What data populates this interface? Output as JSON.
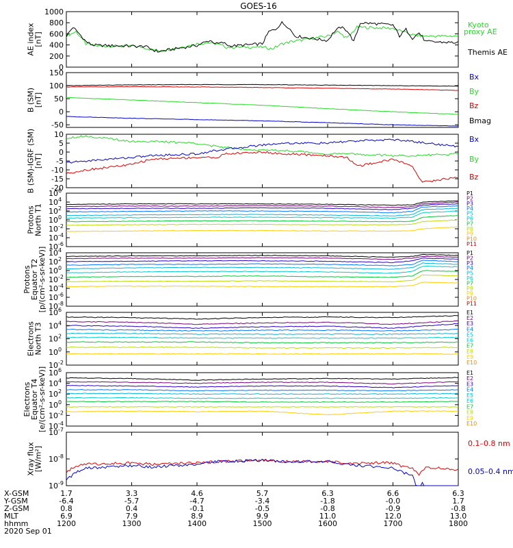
{
  "title": "GOES-16",
  "colors": {
    "black": "#000000",
    "green": "#22dd22",
    "blue": "#0000cc",
    "red": "#dd0000",
    "spectrum": [
      "#000000",
      "#7a007a",
      "#2a00cc",
      "#0077ff",
      "#00b8e0",
      "#00cccc",
      "#00cc33",
      "#bbdd00",
      "#ffcc00",
      "#ee8800",
      "#cc0000"
    ]
  },
  "time_axis": {
    "range": [
      1200,
      1800
    ],
    "ticks": [
      1200,
      1300,
      1400,
      1500,
      1600,
      1700,
      1800
    ],
    "rows": [
      {
        "label": "X-GSM",
        "values": [
          "1.7",
          "3.3",
          "4.6",
          "5.7",
          "6.3",
          "6.6",
          "6.3"
        ]
      },
      {
        "label": "Y-GSM",
        "values": [
          "-6.4",
          "-5.7",
          "-4.7",
          "-3.4",
          "-1.8",
          "-0.0",
          "1.7"
        ]
      },
      {
        "label": "Z-GSM",
        "values": [
          "0.8",
          "0.4",
          "-0.1",
          "-0.5",
          "-0.8",
          "-0.9",
          "-0.8"
        ]
      },
      {
        "label": "MLT",
        "values": [
          "6.9",
          "7.9",
          "8.9",
          "9.9",
          "11.0",
          "12.0",
          "13.0"
        ]
      },
      {
        "label": "hhmm",
        "values": [
          "1200",
          "1300",
          "1400",
          "1500",
          "1600",
          "1700",
          "1800"
        ]
      }
    ],
    "date": "2020 Sep 01"
  },
  "chart_data": [
    {
      "type": "line",
      "scale": "linear",
      "ylabel": [
        "AE index",
        "[nT]"
      ],
      "ylim": [
        0,
        1000
      ],
      "yticks": [
        0,
        200,
        400,
        600,
        800,
        1000
      ],
      "legend": [
        {
          "text": "Kyoto",
          "color": "#22dd22"
        },
        {
          "text": "proxy AE",
          "color": "#22dd22"
        },
        {
          "text": "Themis AE",
          "color": "#000000"
        }
      ],
      "series": [
        {
          "name": "Kyoto proxy AE",
          "color": "#22dd22",
          "x": [
            1200,
            1215,
            1230,
            1245,
            1300,
            1315,
            1330,
            1345,
            1400,
            1415,
            1430,
            1445,
            1500,
            1515,
            1530,
            1545,
            1600,
            1615,
            1630,
            1645,
            1700,
            1715,
            1730,
            1745,
            1800
          ],
          "y": [
            560,
            640,
            420,
            380,
            380,
            360,
            320,
            290,
            420,
            440,
            420,
            360,
            360,
            330,
            420,
            460,
            560,
            640,
            520,
            720,
            700,
            640,
            580,
            560,
            560
          ]
        },
        {
          "name": "Themis AE",
          "color": "#000000",
          "x": [
            1200,
            1210,
            1220,
            1230,
            1240,
            1250,
            1300,
            1310,
            1320,
            1330,
            1340,
            1350,
            1400,
            1410,
            1420,
            1430,
            1440,
            1450,
            1500,
            1510,
            1520,
            1530,
            1540,
            1550,
            1600,
            1610,
            1620,
            1630,
            1640,
            1650,
            1700,
            1710,
            1720,
            1730,
            1740,
            1750,
            1800
          ],
          "y": [
            560,
            720,
            600,
            460,
            400,
            390,
            380,
            370,
            380,
            320,
            280,
            300,
            390,
            440,
            480,
            420,
            440,
            380,
            420,
            640,
            680,
            800,
            720,
            560,
            480,
            640,
            720,
            660,
            460,
            800,
            760,
            560,
            680,
            520,
            620,
            460,
            440
          ]
        }
      ]
    },
    {
      "type": "line",
      "scale": "linear",
      "ylabel": [
        "B (SM)",
        "[nT]"
      ],
      "ylim": [
        -60,
        150
      ],
      "yticks": [
        -50,
        0,
        50,
        100,
        150
      ],
      "legend": [
        {
          "text": "Bx",
          "color": "#0000cc"
        },
        {
          "text": "By",
          "color": "#22dd22"
        },
        {
          "text": "Bz",
          "color": "#dd0000"
        },
        {
          "text": "Bmag",
          "color": "#000000"
        }
      ],
      "series": [
        {
          "name": "Bmag",
          "color": "#000000",
          "x": [
            1200,
            1300,
            1400,
            1500,
            1600,
            1700,
            1800
          ],
          "y": [
            100,
            103,
            104,
            104,
            102,
            100,
            98
          ]
        },
        {
          "name": "Bz",
          "color": "#dd0000",
          "x": [
            1200,
            1300,
            1400,
            1500,
            1600,
            1700,
            1800
          ],
          "y": [
            95,
            96,
            95,
            93,
            90,
            87,
            82
          ]
        },
        {
          "name": "By",
          "color": "#22dd22",
          "x": [
            1200,
            1300,
            1400,
            1500,
            1600,
            1700,
            1800
          ],
          "y": [
            55,
            45,
            35,
            25,
            12,
            0,
            -10
          ]
        },
        {
          "name": "Bx",
          "color": "#0000cc",
          "x": [
            1200,
            1300,
            1400,
            1500,
            1600,
            1700,
            1800
          ],
          "y": [
            -18,
            -25,
            -30,
            -35,
            -42,
            -50,
            -55
          ]
        }
      ]
    },
    {
      "type": "line",
      "scale": "linear",
      "ylabel": [
        "B (SM)-IGRF (SM)",
        "[nT]"
      ],
      "ylim": [
        -20,
        10
      ],
      "yticks": [
        -20,
        -15,
        -10,
        -5,
        0,
        5,
        10
      ],
      "legend": [
        {
          "text": "Bx",
          "color": "#0000cc"
        },
        {
          "text": "By",
          "color": "#22dd22"
        },
        {
          "text": "Bz",
          "color": "#dd0000"
        }
      ],
      "series": [
        {
          "name": "By",
          "color": "#22dd22",
          "x": [
            1200,
            1230,
            1300,
            1330,
            1400,
            1430,
            1500,
            1530,
            1600,
            1630,
            1700,
            1730,
            1800
          ],
          "y": [
            8,
            9,
            6,
            6,
            5,
            3,
            1,
            1,
            -1,
            -1,
            -2,
            -2,
            -1
          ]
        },
        {
          "name": "Bx",
          "color": "#0000cc",
          "x": [
            1200,
            1230,
            1300,
            1330,
            1400,
            1430,
            1500,
            1530,
            1600,
            1630,
            1700,
            1730,
            1800
          ],
          "y": [
            -6,
            -5,
            -3,
            -2,
            -1,
            1,
            4,
            5,
            5,
            6,
            7,
            6,
            3
          ]
        },
        {
          "name": "Bz",
          "color": "#dd0000",
          "x": [
            1200,
            1230,
            1300,
            1330,
            1400,
            1430,
            1445,
            1500,
            1530,
            1600,
            1630,
            1645,
            1700,
            1730,
            1745,
            1800
          ],
          "y": [
            -12,
            -10,
            -7,
            -4,
            -3,
            -3,
            -1,
            0,
            -1,
            -2,
            -3,
            -8,
            -4,
            -8,
            -17,
            -14
          ]
        }
      ]
    },
    {
      "type": "line",
      "scale": "log",
      "ylabel": [
        "Protons",
        "North T1"
      ],
      "ylim_exp": [
        -6,
        6
      ],
      "tick_exps": [
        -6,
        -4,
        -2,
        0,
        2,
        4,
        6
      ],
      "legend_labels": [
        "P1",
        "P2",
        "P3",
        "P4",
        "P5",
        "P6",
        "P7",
        "P8",
        "P9",
        "P10",
        "P11"
      ],
      "x": [
        1200,
        1300,
        1400,
        1500,
        1600,
        1700,
        1730,
        1745,
        1800
      ],
      "log10_values": [
        [
          3.5,
          3.6,
          3.6,
          3.6,
          3.5,
          3.3,
          3.4,
          4.0,
          4.3
        ],
        [
          3.0,
          3.1,
          3.1,
          3.2,
          3.1,
          2.8,
          3.0,
          3.6,
          4.0
        ],
        [
          2.5,
          2.6,
          2.6,
          2.7,
          2.6,
          2.3,
          2.6,
          3.3,
          3.6
        ],
        [
          1.8,
          1.9,
          2.0,
          2.0,
          1.9,
          1.6,
          1.9,
          2.9,
          3.1
        ],
        [
          1.0,
          1.1,
          1.2,
          1.2,
          1.1,
          0.9,
          1.2,
          2.3,
          2.6
        ],
        [
          0.4,
          0.5,
          0.6,
          0.6,
          0.5,
          0.4,
          0.6,
          1.6,
          2.0
        ],
        [
          -0.4,
          -0.3,
          -0.2,
          -0.2,
          -0.3,
          -0.4,
          -0.3,
          0.6,
          1.0
        ],
        [
          -1.2,
          -1.1,
          -1.0,
          -1.0,
          -1.1,
          -1.1,
          -1.0,
          -0.4,
          0.0
        ],
        [
          -2.6,
          -2.5,
          -2.4,
          -2.4,
          -2.5,
          -2.5,
          -2.4,
          -2.0,
          -1.6
        ],
        null,
        null
      ]
    },
    {
      "type": "line",
      "scale": "log",
      "ylabel": [
        "Protons",
        "Equator T2",
        "[p/(cm²-s-sr-keV)]"
      ],
      "ylim_exp": [
        -8,
        4
      ],
      "tick_exps": [
        -8,
        -6,
        -4,
        -2,
        0,
        2,
        4
      ],
      "legend_labels": [
        "P1",
        "P2",
        "P3",
        "P4",
        "P5",
        "P6",
        "P7",
        "P8",
        "P9",
        "P10",
        "P11"
      ],
      "x": [
        1200,
        1300,
        1400,
        1500,
        1600,
        1700,
        1730,
        1745,
        1800
      ],
      "log10_values": [
        [
          3.2,
          3.3,
          3.3,
          3.4,
          3.3,
          3.0,
          3.2,
          3.6,
          3.4
        ],
        [
          2.7,
          2.8,
          2.8,
          2.9,
          2.8,
          2.5,
          2.8,
          3.2,
          3.0
        ],
        [
          2.0,
          2.1,
          2.2,
          2.2,
          2.1,
          1.8,
          2.2,
          2.8,
          2.6
        ],
        [
          1.2,
          1.4,
          1.4,
          1.5,
          1.4,
          1.1,
          1.4,
          2.3,
          2.0
        ],
        [
          0.4,
          0.6,
          0.7,
          0.7,
          0.6,
          0.3,
          0.7,
          1.7,
          1.4
        ],
        [
          -0.5,
          -0.3,
          -0.2,
          -0.2,
          -0.3,
          -0.6,
          -0.2,
          1.0,
          0.8
        ],
        [
          -1.5,
          -1.3,
          -1.3,
          -1.2,
          -1.4,
          -1.5,
          -1.2,
          0.0,
          -0.2
        ],
        [
          -2.5,
          -2.4,
          -2.4,
          -2.3,
          -2.4,
          -2.5,
          -2.2,
          -1.0,
          -1.2
        ],
        [
          -3.6,
          -3.5,
          -3.5,
          -3.6,
          -3.6,
          -3.6,
          -3.4,
          -2.6,
          -2.8
        ],
        null,
        null
      ]
    },
    {
      "type": "line",
      "scale": "log",
      "ylabel": [
        "Electrons",
        "North T3"
      ],
      "ylim_exp": [
        -2,
        6
      ],
      "tick_exps": [
        -2,
        0,
        2,
        4,
        6
      ],
      "legend_labels": [
        "E1",
        "E2",
        "E3",
        "E4",
        "E5",
        "E6",
        "E7",
        "E8",
        "E9",
        "E10"
      ],
      "x": [
        1200,
        1300,
        1400,
        1500,
        1600,
        1700,
        1800
      ],
      "log10_values": [
        [
          5.3,
          5.2,
          5.0,
          5.2,
          5.3,
          5.2,
          5.5
        ],
        [
          4.6,
          4.5,
          4.2,
          4.4,
          4.5,
          4.2,
          4.7
        ],
        [
          4.0,
          3.9,
          3.6,
          3.8,
          3.9,
          3.6,
          4.3
        ],
        [
          3.4,
          3.3,
          3.2,
          3.3,
          3.3,
          3.2,
          3.4
        ],
        [
          2.8,
          2.8,
          2.7,
          2.7,
          2.7,
          2.7,
          2.8
        ],
        [
          2.2,
          2.2,
          2.1,
          2.1,
          2.1,
          2.1,
          2.2
        ],
        [
          1.5,
          1.5,
          1.5,
          1.4,
          1.4,
          1.4,
          1.5
        ],
        [
          0.7,
          0.7,
          0.7,
          0.6,
          0.6,
          0.6,
          0.7
        ],
        [
          -0.3,
          -0.3,
          -0.3,
          -0.3,
          -0.3,
          -0.3,
          -0.3
        ],
        null
      ]
    },
    {
      "type": "line",
      "scale": "log",
      "ylabel": [
        "Electrons",
        "Equator T4",
        "[e/(cm²-s-sr-keV)]"
      ],
      "ylim_exp": [
        -4,
        6
      ],
      "tick_exps": [
        -4,
        -2,
        0,
        2,
        4,
        6
      ],
      "legend_labels": [
        "E1",
        "E2",
        "E3",
        "E4",
        "E5",
        "E6",
        "E7",
        "E8",
        "E9",
        "E10"
      ],
      "x": [
        1200,
        1300,
        1400,
        1500,
        1600,
        1700,
        1800
      ],
      "log10_values": [
        [
          5.0,
          4.9,
          4.6,
          4.8,
          4.9,
          4.8,
          5.1
        ],
        [
          4.3,
          4.2,
          4.0,
          4.2,
          4.2,
          3.9,
          4.3
        ],
        [
          3.6,
          3.5,
          3.3,
          3.5,
          3.5,
          3.2,
          3.6
        ],
        [
          2.8,
          2.8,
          2.6,
          2.7,
          2.7,
          2.6,
          2.8
        ],
        [
          2.1,
          2.1,
          2.0,
          2.0,
          2.0,
          2.0,
          2.1
        ],
        [
          1.3,
          1.3,
          1.2,
          1.2,
          1.2,
          1.2,
          1.3
        ],
        [
          0.6,
          0.6,
          0.6,
          0.5,
          0.5,
          0.5,
          0.6
        ],
        [
          -0.4,
          -0.4,
          -0.4,
          -0.4,
          -0.4,
          -0.4,
          -0.4
        ],
        [
          -1.3,
          -1.2,
          -1.3,
          -1.2,
          -1.9,
          -1.2,
          -1.2
        ],
        null
      ]
    },
    {
      "type": "line",
      "scale": "log",
      "ylabel": [
        "Xray flux",
        "[W/m²]"
      ],
      "ylim_exp": [
        -9,
        -7
      ],
      "tick_exps": [
        -9,
        -8,
        -7
      ],
      "legend": [
        {
          "text": "0.1–0.8 nm",
          "color": "#dd0000"
        },
        {
          "text": "0.05–0.4 nm",
          "color": "#0000cc"
        }
      ],
      "series": [
        {
          "name": "0.1–0.8 nm",
          "color": "#dd0000",
          "x": [
            1200,
            1215,
            1230,
            1300,
            1330,
            1400,
            1430,
            1500,
            1530,
            1600,
            1630,
            1700,
            1715,
            1730,
            1740,
            1750,
            1800
          ],
          "log10_values": [
            -8.5,
            -8.25,
            -8.2,
            -8.15,
            -8.2,
            -8.15,
            -8.1,
            -8.05,
            -8.1,
            -8.1,
            -8.15,
            -8.15,
            -8.3,
            -8.35,
            -8.6,
            -8.3,
            -8.4
          ]
        },
        {
          "name": "0.05–0.4 nm",
          "color": "#0000cc",
          "x": [
            1200,
            1215,
            1230,
            1300,
            1330,
            1400,
            1430,
            1500,
            1530,
            1600,
            1630,
            1700,
            1715,
            1730,
            1735,
            1740,
            1745,
            1750,
            1760,
            1800
          ],
          "log10_values": [
            -8.8,
            -8.5,
            -8.35,
            -8.25,
            -8.3,
            -8.2,
            -8.1,
            -8.05,
            -8.1,
            -8.1,
            -8.2,
            -8.35,
            -8.5,
            -8.6,
            -9.0,
            -9.4,
            -8.9,
            -9.4,
            -9.3,
            -9.4
          ]
        }
      ]
    }
  ]
}
